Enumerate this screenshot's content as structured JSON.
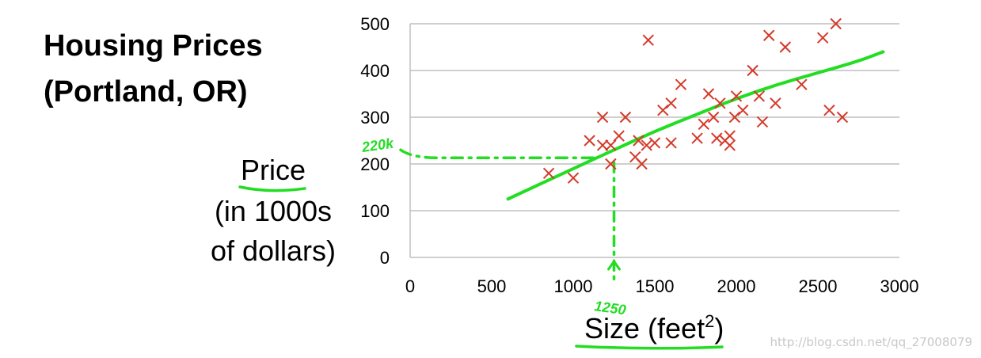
{
  "colors": {
    "marker": "#d43a2a",
    "fit_line": "#22dd22",
    "gridline": "#bfbfbf",
    "text": "#000000"
  },
  "chart_data": {
    "type": "scatter",
    "title": "Housing Prices",
    "subtitle": "(Portland, OR)",
    "ylabel": [
      "Price",
      "(in 1000s",
      "of dollars)"
    ],
    "xlabel": "Size (feet",
    "xlabel_superscript": "2",
    "xlabel_suffix": ")",
    "xlim": [
      0,
      3000
    ],
    "ylim": [
      0,
      500
    ],
    "xticks": [
      0,
      500,
      1000,
      1500,
      2000,
      2500,
      3000
    ],
    "yticks": [
      0,
      100,
      200,
      300,
      400,
      500
    ],
    "grid": true,
    "marker": "x",
    "points": [
      [
        850,
        180
      ],
      [
        1000,
        170
      ],
      [
        1100,
        250
      ],
      [
        1180,
        300
      ],
      [
        1180,
        240
      ],
      [
        1230,
        200
      ],
      [
        1230,
        240
      ],
      [
        1280,
        260
      ],
      [
        1320,
        300
      ],
      [
        1380,
        215
      ],
      [
        1400,
        250
      ],
      [
        1420,
        200
      ],
      [
        1450,
        240
      ],
      [
        1460,
        465
      ],
      [
        1500,
        245
      ],
      [
        1550,
        315
      ],
      [
        1600,
        330
      ],
      [
        1600,
        245
      ],
      [
        1660,
        370
      ],
      [
        1760,
        255
      ],
      [
        1800,
        285
      ],
      [
        1830,
        350
      ],
      [
        1860,
        300
      ],
      [
        1880,
        255
      ],
      [
        1900,
        330
      ],
      [
        1930,
        250
      ],
      [
        1960,
        260
      ],
      [
        1960,
        240
      ],
      [
        1990,
        300
      ],
      [
        2000,
        345
      ],
      [
        2040,
        315
      ],
      [
        2100,
        400
      ],
      [
        2140,
        345
      ],
      [
        2160,
        290
      ],
      [
        2200,
        475
      ],
      [
        2240,
        330
      ],
      [
        2300,
        450
      ],
      [
        2400,
        370
      ],
      [
        2530,
        470
      ],
      [
        2570,
        315
      ],
      [
        2610,
        500
      ],
      [
        2650,
        300
      ]
    ],
    "fit_curve": [
      [
        600,
        125
      ],
      [
        1000,
        190
      ],
      [
        1250,
        230
      ],
      [
        1500,
        270
      ],
      [
        1750,
        305
      ],
      [
        2000,
        340
      ],
      [
        2250,
        370
      ],
      [
        2500,
        395
      ],
      [
        2750,
        420
      ],
      [
        2900,
        440
      ]
    ],
    "annotations": {
      "x_marker_value": 1250,
      "x_marker_label": "1250",
      "y_marker_value": 220,
      "y_marker_label": "220k"
    }
  },
  "watermark": "http://blog.csdn.net/qq_27008079"
}
